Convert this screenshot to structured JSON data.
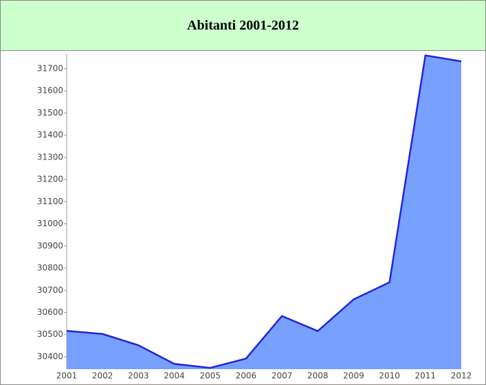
{
  "chart_data": {
    "type": "area",
    "title": "Abitanti 2001-2012",
    "categories": [
      "2001",
      "2002",
      "2003",
      "2004",
      "2005",
      "2006",
      "2007",
      "2008",
      "2009",
      "2010",
      "2011",
      "2012"
    ],
    "series": [
      {
        "name": "Abitanti",
        "color": "#77a0ff",
        "line_color": "#2222dd",
        "values": [
          30517,
          30503,
          30452,
          30368,
          30350,
          30392,
          30584,
          30516,
          30659,
          30736,
          31760,
          31733
        ]
      }
    ],
    "ylim": [
      30344,
      31768
    ],
    "yticks": [
      30400,
      30500,
      30600,
      30700,
      30800,
      30900,
      31000,
      31100,
      31200,
      31300,
      31400,
      31500,
      31600,
      31700
    ]
  }
}
